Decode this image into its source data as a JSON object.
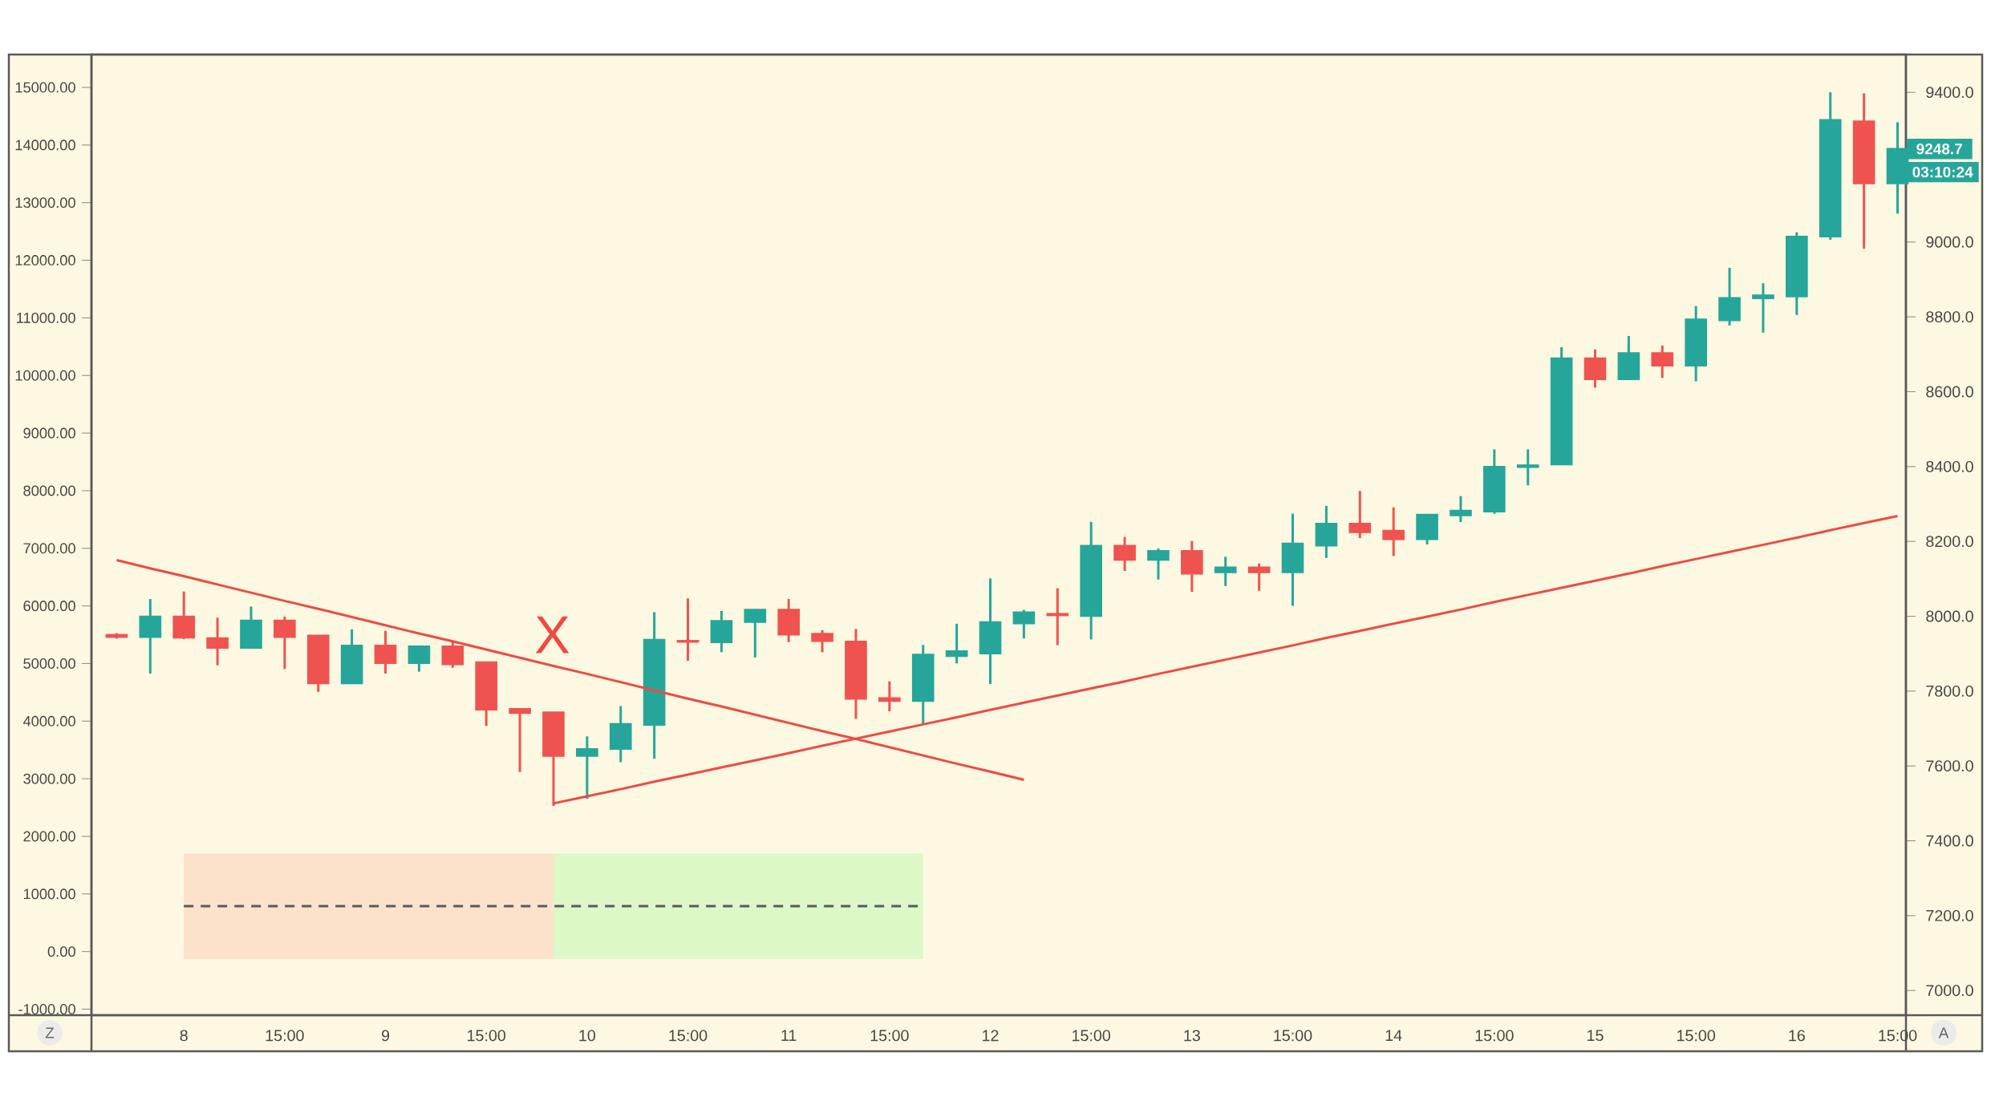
{
  "chart_data": {
    "type": "candlestick",
    "categories": [
      null,
      null,
      "8",
      null,
      null,
      "15:00",
      null,
      null,
      "9",
      null,
      null,
      "15:00",
      null,
      null,
      "10",
      null,
      null,
      "15:00",
      null,
      null,
      "11",
      null,
      null,
      "15:00",
      null,
      null,
      "12",
      null,
      null,
      "15:00",
      null,
      null,
      "13",
      null,
      null,
      "15:00",
      null,
      null,
      "14",
      null,
      null,
      "15:00",
      null,
      null,
      "15",
      null,
      null,
      "15:00",
      null,
      null,
      "16",
      null,
      null,
      "15:00"
    ],
    "ylim": [
      -1104,
      15571
    ],
    "yticks": [
      {
        "value": -1000,
        "label": "-1000.00"
      },
      {
        "value": 0,
        "label": "0.00"
      },
      {
        "value": 1000,
        "label": "1000.00"
      },
      {
        "value": 2000,
        "label": "2000.00"
      },
      {
        "value": 3000,
        "label": "3000.00"
      },
      {
        "value": 4000,
        "label": "4000.00"
      },
      {
        "value": 5000,
        "label": "5000.00"
      },
      {
        "value": 6000,
        "label": "6000.00"
      },
      {
        "value": 7000,
        "label": "7000.00"
      },
      {
        "value": 8000,
        "label": "8000.00"
      },
      {
        "value": 9000,
        "label": "9000.00"
      },
      {
        "value": 10000,
        "label": "10000.00"
      },
      {
        "value": 11000,
        "label": "11000.00"
      },
      {
        "value": 12000,
        "label": "12000.00"
      },
      {
        "value": 13000,
        "label": "13000.00"
      },
      {
        "value": 14000,
        "label": "14000.00"
      },
      {
        "value": 15000,
        "label": "15000.00"
      }
    ],
    "y2lim": [
      6934,
      9501
    ],
    "y2ticks": [
      {
        "value": 7000,
        "label": "7000.0"
      },
      {
        "value": 7200,
        "label": "7200.0"
      },
      {
        "value": 7400,
        "label": "7400.0"
      },
      {
        "value": 7600,
        "label": "7600.0"
      },
      {
        "value": 7800,
        "label": "7800.0"
      },
      {
        "value": 8000,
        "label": "8000.0"
      },
      {
        "value": 8200,
        "label": "8200.0"
      },
      {
        "value": 8400,
        "label": "8400.0"
      },
      {
        "value": 8600,
        "label": "8600.0"
      },
      {
        "value": 8800,
        "label": "8800.0"
      },
      {
        "value": 9000,
        "label": "9000.0"
      },
      {
        "value": 9200,
        "label": null
      },
      {
        "value": 9400,
        "label": "9400.0"
      }
    ],
    "series": [
      {
        "axis": "y2",
        "ohlc": [
          [
            7950,
            7955,
            7940,
            7945
          ],
          [
            7945,
            8046,
            7847,
            7999
          ],
          [
            7999,
            8066,
            7939,
            7943
          ],
          [
            7941,
            7996,
            7869,
            7916
          ],
          [
            7916,
            8026,
            7916,
            7988
          ],
          [
            7988,
            7999,
            7859,
            7945
          ],
          [
            7948,
            7948,
            7798,
            7821
          ],
          [
            7821,
            7965,
            7821,
            7921
          ],
          [
            7921,
            7961,
            7847,
            7875
          ],
          [
            7875,
            7919,
            7852,
            7919
          ],
          [
            7919,
            7932,
            7862,
            7872
          ],
          [
            7877,
            7877,
            7707,
            7751
          ],
          [
            7752,
            7752,
            7584,
            7742
          ],
          [
            7743,
            7743,
            7493,
            7627
          ],
          [
            7627,
            7679,
            7512,
            7645
          ],
          [
            7646,
            7760,
            7610,
            7712
          ],
          [
            7710,
            8011,
            7619,
            7937
          ],
          [
            7934,
            8048,
            7881,
            7932
          ],
          [
            7931,
            8014,
            7904,
            7987
          ],
          [
            7985,
            8019,
            7890,
            8017
          ],
          [
            8017,
            8046,
            7931,
            7951
          ],
          [
            7953,
            7963,
            7904,
            7934
          ],
          [
            7932,
            7966,
            7726,
            7780
          ],
          [
            7781,
            7826,
            7746,
            7774
          ],
          [
            7774,
            7923,
            7710,
            7897
          ],
          [
            7894,
            7980,
            7874,
            7906
          ],
          [
            7901,
            8101,
            7819,
            7984
          ],
          [
            7981,
            8017,
            7941,
            8010
          ],
          [
            8006,
            8075,
            7923,
            8003
          ],
          [
            8001,
            8252,
            7938,
            8188
          ],
          [
            8188,
            8212,
            8121,
            8151
          ],
          [
            8151,
            8181,
            8098,
            8174
          ],
          [
            8174,
            8201,
            8065,
            8114
          ],
          [
            8118,
            8159,
            8081,
            8130
          ],
          [
            8130,
            8141,
            8068,
            8118
          ],
          [
            8118,
            8274,
            8028,
            8194
          ],
          [
            8189,
            8295,
            8156,
            8247
          ],
          [
            8247,
            8335,
            8209,
            8225
          ],
          [
            8228,
            8291,
            8161,
            8206
          ],
          [
            8206,
            8271,
            8192,
            8271
          ],
          [
            8270,
            8321,
            8252,
            8282
          ],
          [
            8280,
            8446,
            8274,
            8399
          ],
          [
            8399,
            8446,
            8350,
            8403
          ],
          [
            8406,
            8719,
            8406,
            8689
          ],
          [
            8689,
            8713,
            8611,
            8634
          ],
          [
            8634,
            8749,
            8632,
            8703
          ],
          [
            8703,
            8723,
            8637,
            8670
          ],
          [
            8670,
            8829,
            8628,
            8793
          ],
          [
            8791,
            8931,
            8777,
            8850
          ],
          [
            8850,
            8890,
            8758,
            8857
          ],
          [
            8855,
            9026,
            8805,
            9014
          ],
          [
            9015,
            9400,
            9006,
            9326
          ],
          [
            9322,
            9397,
            8982,
            9157
          ],
          [
            9157,
            9320,
            9076,
            9248.7
          ]
        ],
        "colors": [
          "#ef5350",
          "#26a69a",
          "#ef5350",
          "#ef5350",
          "#26a69a",
          "#ef5350",
          "#ef5350",
          "#26a69a",
          "#ef5350",
          "#26a69a",
          "#ef5350",
          "#ef5350",
          "#ef5350",
          "#ef5350",
          "#26a69a",
          "#26a69a",
          "#26a69a",
          "#ef5350",
          "#26a69a",
          "#26a69a",
          "#ef5350",
          "#ef5350",
          "#ef5350",
          "#ef5350",
          "#26a69a",
          "#26a69a",
          "#26a69a",
          "#26a69a",
          "#ef5350",
          "#26a69a",
          "#ef5350",
          "#26a69a",
          "#ef5350",
          "#26a69a",
          "#ef5350",
          "#26a69a",
          "#26a69a",
          "#ef5350",
          "#ef5350",
          "#26a69a",
          "#26a69a",
          "#26a69a",
          "#26a69a",
          "#26a69a",
          "#ef5350",
          "#26a69a",
          "#ef5350",
          "#26a69a",
          "#26a69a",
          "#26a69a",
          "#26a69a",
          "#26a69a",
          "#ef5350",
          "#26a69a"
        ]
      },
      {
        "type": "line",
        "axis": "y2",
        "color": "#ef4a43",
        "values": [
          8150,
          8128,
          8107,
          8085,
          8063,
          8041,
          8020,
          7998,
          7976,
          7954,
          7933,
          7911,
          7889,
          7867,
          7846,
          7824,
          7802,
          7780,
          7759,
          7737,
          7715,
          7693,
          7672,
          7650,
          7628,
          7606,
          7585,
          7563,
          null,
          null,
          null,
          null,
          null,
          null,
          null,
          null,
          null,
          null,
          null,
          null,
          null,
          null,
          null,
          null,
          null,
          null,
          null,
          null,
          null,
          null,
          null,
          null,
          null,
          null
        ]
      },
      {
        "type": "line",
        "axis": "y2",
        "color": "#ef4a43",
        "values": [
          null,
          null,
          null,
          null,
          null,
          null,
          null,
          null,
          null,
          null,
          null,
          null,
          null,
          7500,
          7519,
          7538,
          7558,
          7577,
          7596,
          7615,
          7634,
          7654,
          7673,
          7692,
          7711,
          7730,
          7750,
          7769,
          7788,
          7807,
          7826,
          7846,
          7865,
          7884,
          7903,
          7922,
          7942,
          7961,
          7980,
          7999,
          8018,
          8038,
          8057,
          8076,
          8095,
          8114,
          8134,
          8153,
          8172,
          8191,
          8210,
          8230,
          8249,
          8268
        ]
      },
      {
        "type": "line",
        "color": "#fde2cb",
        "values": [
          null,
          null,
          null,
          null,
          null,
          null,
          null,
          null,
          null,
          null,
          null,
          null,
          null,
          null,
          null,
          null,
          null,
          null,
          null,
          null,
          null,
          null,
          null,
          null,
          null,
          null,
          null,
          null,
          null,
          null,
          null,
          null,
          null,
          null,
          null,
          null,
          null,
          null,
          null,
          null,
          null,
          null,
          null,
          null,
          null,
          null,
          null,
          null,
          null,
          null,
          null,
          null,
          null,
          null
        ],
        "upper": [
          null,
          null,
          1700,
          1700,
          1700,
          1700,
          1700,
          1700,
          1700,
          1700,
          1700,
          1700,
          1700,
          1700,
          null,
          null,
          null,
          null,
          null,
          null,
          null,
          null,
          null,
          null,
          null,
          null,
          null,
          null,
          null,
          null,
          null,
          null,
          null,
          null,
          null,
          null,
          null,
          null,
          null,
          null,
          null,
          null,
          null,
          null,
          null,
          null,
          null,
          null,
          null,
          null,
          null,
          null,
          null,
          null
        ],
        "lower": [
          null,
          null,
          -130,
          -130,
          -130,
          -130,
          -130,
          -130,
          -130,
          -130,
          -130,
          -130,
          -130,
          -130,
          null,
          null,
          null,
          null,
          null,
          null,
          null,
          null,
          null,
          null,
          null,
          null,
          null,
          null,
          null,
          null,
          null,
          null,
          null,
          null,
          null,
          null,
          null,
          null,
          null,
          null,
          null,
          null,
          null,
          null,
          null,
          null,
          null,
          null,
          null,
          null,
          null,
          null,
          null,
          null
        ]
      },
      {
        "type": "line",
        "color": "#dcf8c6",
        "values": [
          null,
          null,
          null,
          null,
          null,
          null,
          null,
          null,
          null,
          null,
          null,
          null,
          null,
          null,
          null,
          null,
          null,
          null,
          null,
          null,
          null,
          null,
          null,
          null,
          null,
          null,
          null,
          null,
          null,
          null,
          null,
          null,
          null,
          null,
          null,
          null,
          null,
          null,
          null,
          null,
          null,
          null,
          null,
          null,
          null,
          null,
          null,
          null,
          null,
          null,
          null,
          null,
          null,
          null
        ],
        "upper": [
          null,
          null,
          null,
          null,
          null,
          null,
          null,
          null,
          null,
          null,
          null,
          null,
          null,
          1700,
          1700,
          1700,
          1700,
          1700,
          1700,
          1700,
          1700,
          1700,
          1700,
          1700,
          1700,
          null,
          null,
          null,
          null,
          null,
          null,
          null,
          null,
          null,
          null,
          null,
          null,
          null,
          null,
          null,
          null,
          null,
          null,
          null,
          null,
          null,
          null,
          null,
          null,
          null,
          null,
          null,
          null,
          null
        ],
        "lower": [
          null,
          null,
          null,
          null,
          null,
          null,
          null,
          null,
          null,
          null,
          null,
          null,
          null,
          -130,
          -130,
          -130,
          -130,
          -130,
          -130,
          -130,
          -130,
          -130,
          -130,
          -130,
          -130,
          null,
          null,
          null,
          null,
          null,
          null,
          null,
          null,
          null,
          null,
          null,
          null,
          null,
          null,
          null,
          null,
          null,
          null,
          null,
          null,
          null,
          null,
          null,
          null,
          null,
          null,
          null,
          null,
          null
        ]
      },
      {
        "type": "line",
        "line_style": "dashed",
        "color": "#5a5a5a",
        "values": [
          null,
          null,
          790,
          790,
          790,
          790,
          790,
          790,
          790,
          790,
          790,
          790,
          790,
          790,
          790,
          790,
          790,
          790,
          790,
          790,
          790,
          790,
          790,
          790,
          790,
          null,
          null,
          null,
          null,
          null,
          null,
          null,
          null,
          null,
          null,
          null,
          null,
          null,
          null,
          null,
          null,
          null,
          null,
          null,
          null,
          null,
          null,
          null,
          null,
          null,
          null,
          null,
          null,
          null
        ]
      }
    ],
    "annotations": [
      "X",
      "9248.7",
      "03:10:24",
      "Z",
      "A"
    ]
  }
}
